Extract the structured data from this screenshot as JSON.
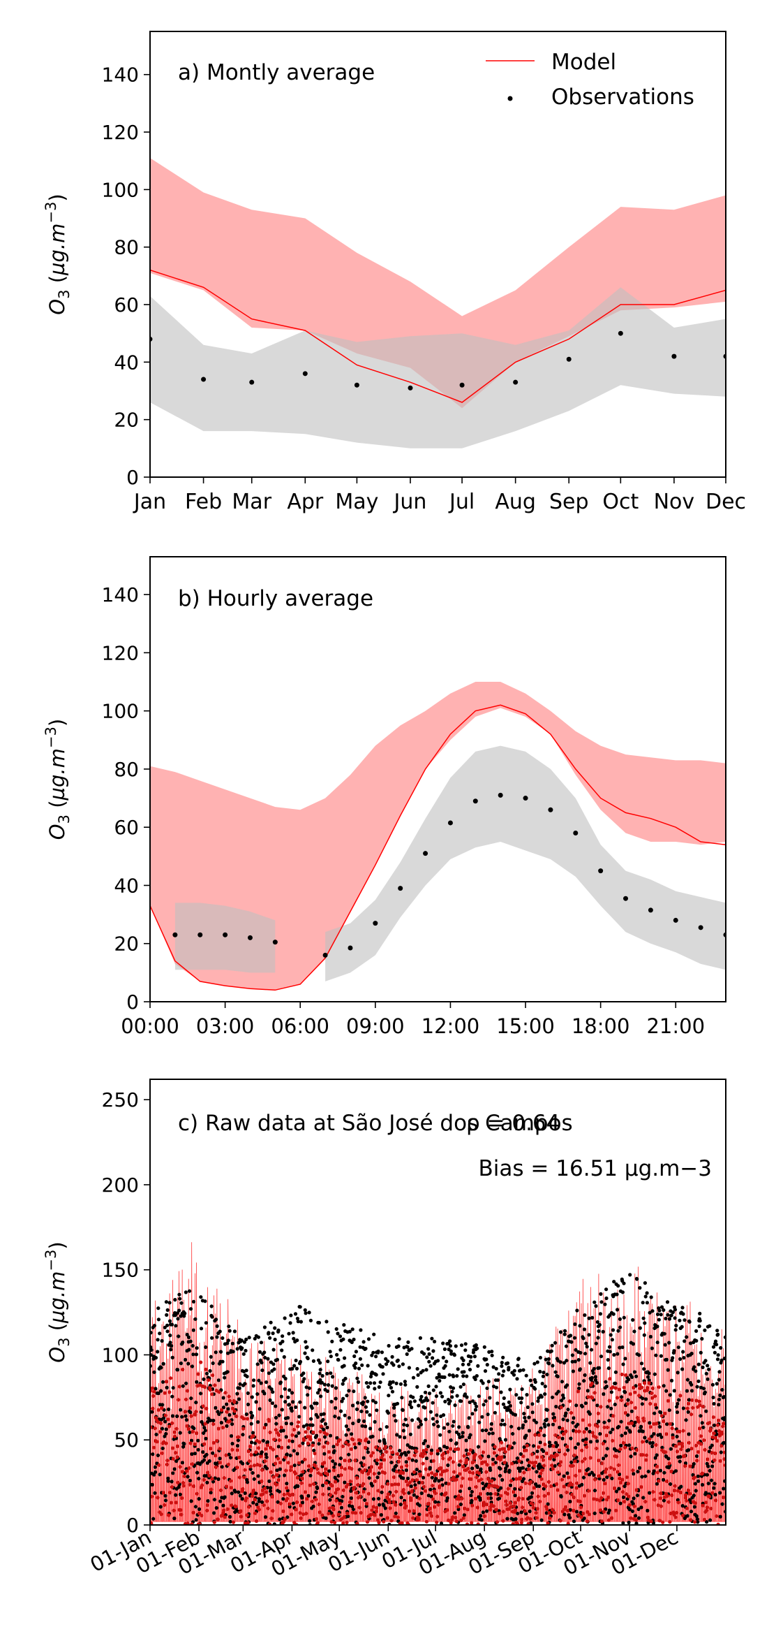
{
  "chart_data": [
    {
      "type": "line",
      "panel_label": "a) Montly average",
      "ylabel": "O3 (µg.m−3)",
      "xlabel": "",
      "ylim": [
        0,
        155
      ],
      "yticks": [
        0,
        20,
        40,
        60,
        80,
        100,
        120,
        140
      ],
      "grid": false,
      "legend_position": "top-right",
      "categories": [
        "Jan",
        "Feb",
        "Mar",
        "Apr",
        "May",
        "Jun",
        "Jul",
        "Aug",
        "Sep",
        "Oct",
        "Nov",
        "Dec"
      ],
      "x_days": [
        0,
        31,
        59,
        90,
        120,
        151,
        181,
        212,
        243,
        273,
        304,
        334
      ],
      "series": [
        {
          "name": "Model",
          "kind": "line",
          "color": "#ff0000",
          "values": [
            72,
            66,
            55,
            51,
            39,
            33,
            26,
            40,
            48,
            60,
            60,
            65
          ]
        },
        {
          "name": "Observations",
          "kind": "scatter",
          "color": "#000000",
          "values": [
            48,
            34,
            33,
            36,
            32,
            31,
            32,
            33,
            41,
            50,
            42,
            42
          ]
        }
      ],
      "bands": [
        {
          "color": "#ff7f7f",
          "lower": [
            71,
            65,
            52,
            51,
            43,
            38,
            24,
            40,
            49,
            58,
            59,
            61
          ],
          "upper": [
            111,
            99,
            93,
            90,
            78,
            68,
            56,
            65,
            80,
            94,
            93,
            98
          ]
        },
        {
          "color": "#bfbfbf",
          "lower": [
            26,
            16,
            16,
            15,
            12,
            10,
            10,
            16,
            23,
            32,
            29,
            28
          ],
          "upper": [
            63,
            46,
            43,
            51,
            47,
            49,
            50,
            46,
            51,
            66,
            52,
            55
          ]
        }
      ]
    },
    {
      "type": "line",
      "panel_label": "b) Hourly average",
      "ylabel": "O3 (µg.m−3)",
      "xlabel": "",
      "ylim": [
        0,
        153
      ],
      "yticks": [
        0,
        20,
        40,
        60,
        80,
        100,
        120,
        140
      ],
      "grid": false,
      "xticks": [
        0,
        3,
        6,
        9,
        12,
        15,
        18,
        21
      ],
      "xticklabels": [
        "00:00",
        "03:00",
        "06:00",
        "09:00",
        "12:00",
        "15:00",
        "18:00",
        "21:00"
      ],
      "x": [
        0,
        1,
        2,
        3,
        4,
        5,
        6,
        7,
        8,
        9,
        10,
        11,
        12,
        13,
        14,
        15,
        16,
        17,
        18,
        19,
        20,
        21,
        22,
        23
      ],
      "series": [
        {
          "name": "Model",
          "kind": "line",
          "color": "#ff0000",
          "values": [
            33,
            14,
            7,
            5.5,
            4.5,
            4,
            6,
            15,
            31,
            47,
            64,
            80,
            92,
            100,
            102,
            99,
            92,
            80,
            70,
            65,
            63,
            60,
            55,
            54
          ]
        },
        {
          "name": "Observations",
          "kind": "scatter",
          "color": "#000000",
          "values": [
            null,
            23,
            23,
            23,
            22,
            20.5,
            null,
            16,
            18.5,
            27,
            39,
            51,
            61.5,
            69,
            71,
            70,
            66,
            58,
            45,
            35.5,
            31.5,
            28,
            25.5,
            23
          ]
        }
      ],
      "bands": [
        {
          "color": "#ff7f7f",
          "x": [
            0,
            1,
            2,
            3,
            4,
            5,
            6,
            7,
            8,
            9,
            10,
            11,
            12,
            13,
            14,
            15,
            16,
            17,
            18,
            19,
            20,
            21,
            22,
            23
          ],
          "lower": [
            33,
            13,
            7,
            5.5,
            4.5,
            4,
            6,
            15,
            31,
            47,
            64,
            80,
            90,
            98,
            101,
            98,
            92,
            78,
            66,
            58,
            55,
            55,
            54,
            55
          ],
          "upper": [
            81,
            79,
            76,
            73,
            70,
            67,
            66,
            70,
            78,
            88,
            95,
            100,
            106,
            110,
            110,
            106,
            100,
            93,
            88,
            85,
            84,
            83,
            83,
            82
          ]
        },
        {
          "color": "#bfbfbf",
          "x": [
            1,
            2,
            3,
            4,
            5
          ],
          "lower": [
            11,
            11,
            11,
            10,
            10
          ],
          "upper": [
            34,
            34,
            33,
            31,
            28
          ]
        },
        {
          "color": "#bfbfbf",
          "x": [
            7,
            8,
            9,
            10,
            11,
            12,
            13,
            14,
            15,
            16,
            17,
            18,
            19,
            20,
            21,
            22,
            23
          ],
          "lower": [
            7,
            10,
            16,
            29,
            40,
            49,
            53,
            55,
            52,
            49,
            43,
            33,
            24,
            20,
            17,
            13,
            11
          ],
          "upper": [
            24,
            27,
            35,
            48,
            63,
            77,
            86,
            88,
            86,
            80,
            70,
            54,
            45,
            42,
            38,
            36,
            34
          ]
        }
      ]
    },
    {
      "type": "line",
      "panel_label": "c) Raw data at São José dos Campos",
      "ylabel": "O3 (µg.m−3)",
      "xlabel": "",
      "ylim": [
        0,
        262
      ],
      "yticks": [
        0,
        50,
        100,
        150,
        200,
        250
      ],
      "grid": false,
      "xticklabels": [
        "01-Jan",
        "01-Feb",
        "01-Mar",
        "01-Apr",
        "01-May",
        "01-Jun",
        "01-Jul",
        "01-Aug",
        "01-Sep",
        "01-Oct",
        "01-Nov",
        "01-Dec"
      ],
      "x_days": [
        0,
        31,
        59,
        90,
        120,
        151,
        181,
        212,
        243,
        273,
        304,
        334
      ],
      "annotations": [
        {
          "text": "ρ = 0.64"
        },
        {
          "text": "Bias = 16.51 µg.m−3"
        }
      ],
      "series": [
        {
          "name": "Model",
          "kind": "line",
          "color": "#ff0000",
          "daily_peak_envelope_x_days": [
            0,
            31,
            59,
            90,
            120,
            151,
            181,
            212,
            243,
            273,
            304,
            334,
            365
          ],
          "daily_peak_envelope": [
            145,
            180,
            120,
            115,
            100,
            85,
            80,
            90,
            95,
            150,
            165,
            140,
            125
          ]
        },
        {
          "name": "Observations",
          "kind": "scatter",
          "color": "#000000",
          "daily_peak_envelope_x_days": [
            0,
            31,
            59,
            90,
            120,
            151,
            181,
            212,
            243,
            273,
            304,
            334,
            365
          ],
          "daily_peak_envelope": [
            130,
            140,
            110,
            130,
            120,
            110,
            110,
            105,
            95,
            130,
            150,
            130,
            120
          ]
        }
      ]
    }
  ]
}
